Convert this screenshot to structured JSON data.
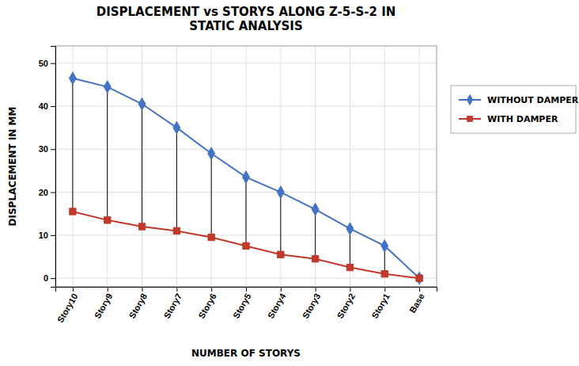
{
  "chart_data": {
    "type": "line",
    "title": "DISPLACEMENT vs STORYS ALONG Z-5-S-2 IN\nSTATIC ANALYSIS",
    "xlabel": "NUMBER OF STORYS",
    "ylabel": "DISPLACEMENT IN MM",
    "categories": [
      "Story10",
      "Story9",
      "Story8",
      "Story7",
      "Story6",
      "Story5",
      "Story4",
      "Story3",
      "Story2",
      "Story1",
      "Base"
    ],
    "series": [
      {
        "name": "WITHOUT DAMPER",
        "color": "#4472C4",
        "marker": "diamond",
        "values": [
          46.5,
          44.5,
          40.5,
          35,
          29,
          23.5,
          20,
          16,
          11.5,
          7.5,
          0
        ]
      },
      {
        "name": "WITH DAMPER",
        "color": "#C0392B",
        "marker": "square",
        "values": [
          15.5,
          13.5,
          12,
          11,
          9.5,
          7.5,
          5.5,
          4.5,
          2.5,
          1,
          0
        ]
      }
    ],
    "ylim": [
      -2,
      54
    ],
    "yticks": [
      0,
      10,
      20,
      30,
      40,
      50
    ],
    "grid": true,
    "legend": "right"
  }
}
